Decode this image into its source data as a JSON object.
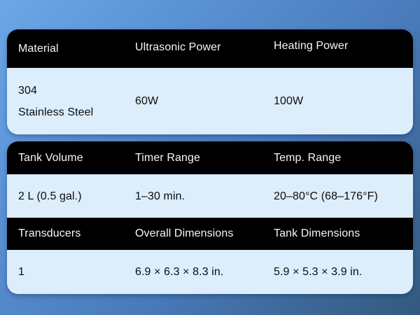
{
  "colors": {
    "background_gradient_start": "#6da7e7",
    "background_gradient_end": "#33597f",
    "header_row_bg": "#000000",
    "header_row_text": "#f7f7f7",
    "data_row_bg": "#dcedfc",
    "data_row_text": "#0c0c0c"
  },
  "cards": [
    {
      "rows": [
        {
          "type": "header",
          "cells": [
            "Material",
            "Ultrasonic Power",
            "Heating Power"
          ]
        },
        {
          "type": "data",
          "cells": [
            "304\nStainless Steel",
            "60W",
            "100W"
          ]
        }
      ]
    },
    {
      "rows": [
        {
          "type": "header",
          "cells": [
            "Tank Volume",
            "Timer Range",
            "Temp. Range"
          ]
        },
        {
          "type": "data",
          "cells": [
            "2 L (0.5 gal.)",
            "1–30 min.",
            "20–80°C (68–176°F)"
          ]
        },
        {
          "type": "header",
          "cells": [
            "Transducers",
            "Overall Dimensions",
            "Tank Dimensions"
          ]
        },
        {
          "type": "data",
          "cells": [
            "1",
            "6.9 × 6.3 × 8.3 in.",
            "5.9 × 5.3 × 3.9 in."
          ]
        }
      ]
    }
  ]
}
